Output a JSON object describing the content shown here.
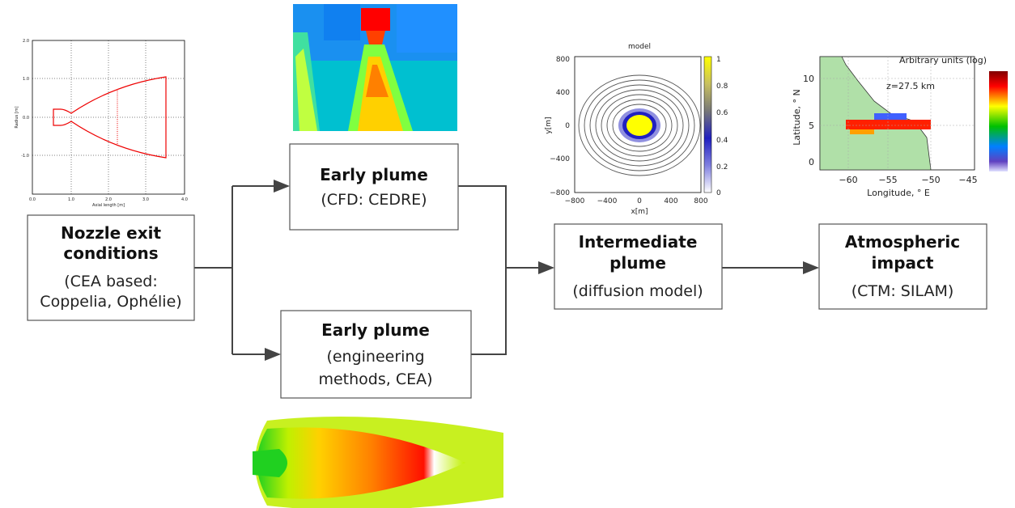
{
  "boxes": [
    {
      "title": [
        "Nozzle exit",
        "conditions"
      ],
      "lines": [
        "(CEA based:",
        "Coppelia, Ophélie)"
      ]
    },
    {
      "title": [
        "Early plume"
      ],
      "lines": [
        "(CFD: CEDRE)"
      ]
    },
    {
      "title": [
        "Early plume"
      ],
      "lines": [
        "(engineering",
        "methods, CEA)"
      ]
    },
    {
      "title": [
        "Intermediate",
        "plume"
      ],
      "lines": [
        "(diffusion model)"
      ]
    },
    {
      "title": [
        "Atmospheric",
        "impact"
      ],
      "lines": [
        "(CTM: SILAM)"
      ]
    }
  ],
  "insets": {
    "nozzle_plot": {
      "x_label": "Axial length [m]",
      "y_label": "Radius [m]",
      "x_ticks": [
        "0.0",
        "1.0",
        "2.0",
        "3.0",
        "4.0"
      ],
      "y_ticks": [
        "2.0",
        "1.0",
        "0.0",
        "-1.0"
      ]
    },
    "diffusion_plot": {
      "title": "model",
      "x_label": "x[m]",
      "y_label": "y[m]",
      "x_ticks": [
        "−800",
        "−400",
        "0",
        "400",
        "800"
      ],
      "y_ticks": [
        "800",
        "400",
        "0",
        "−400",
        "−800"
      ],
      "colorbar_ticks": [
        "1",
        "0.8",
        "0.6",
        "0.4",
        "0.2",
        "0"
      ]
    },
    "map": {
      "title": "Arbitrary units (log)",
      "annotation": "z=27.5 km",
      "x_label": "Longitude, ° E",
      "y_label": "Latitude, ° N",
      "x_ticks": [
        "−60",
        "−55",
        "−50",
        "−45"
      ],
      "y_ticks": [
        "10",
        "5",
        "0"
      ]
    }
  }
}
